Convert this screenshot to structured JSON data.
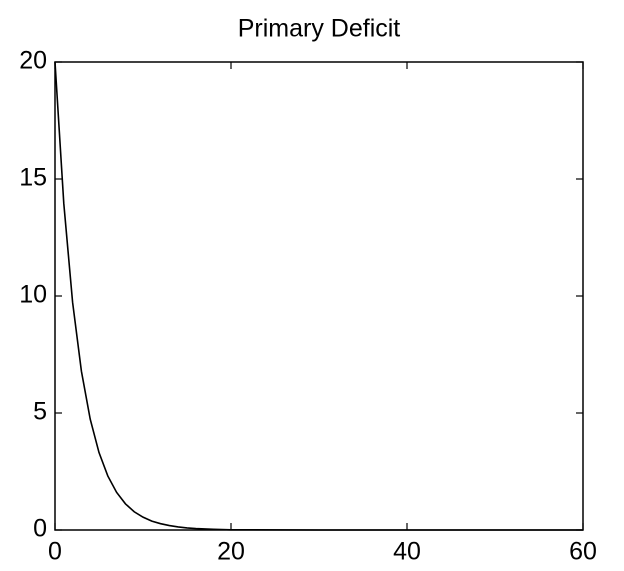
{
  "chart_data": {
    "type": "line",
    "title": "Primary Deficit",
    "x": [
      0,
      1,
      2,
      3,
      4,
      5,
      6,
      7,
      8,
      9,
      10,
      11,
      12,
      13,
      14,
      15,
      16,
      18,
      20,
      30,
      40,
      50,
      60
    ],
    "series": [
      {
        "color": "#000000",
        "values": [
          20,
          13.95,
          9.73,
          6.79,
          4.74,
          3.31,
          2.31,
          1.61,
          1.12,
          0.78,
          0.55,
          0.38,
          0.27,
          0.19,
          0.13,
          0.09,
          0.06,
          0.03,
          0.01,
          0,
          0,
          0,
          0
        ]
      }
    ],
    "xlim": [
      0,
      60
    ],
    "xticks": [
      0,
      20,
      40,
      60
    ],
    "ylim": [
      0,
      20
    ],
    "yticks": [
      0,
      5,
      10,
      15,
      20
    ],
    "grid": false
  }
}
